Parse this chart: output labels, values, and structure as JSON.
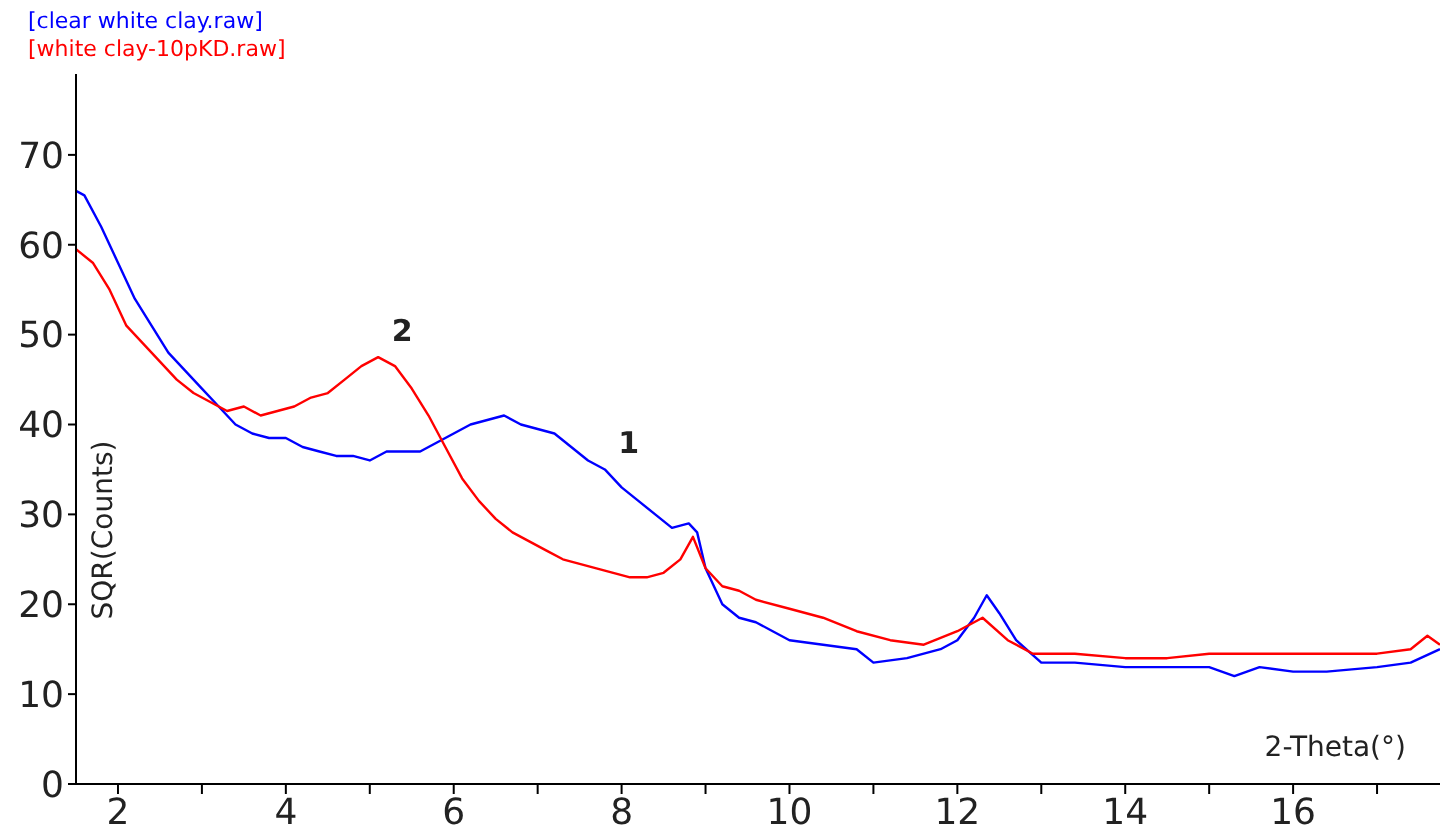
{
  "chart_data": {
    "type": "line",
    "xlabel": "2-Theta(°)",
    "ylabel": "SQR(Counts)",
    "xlim": [
      1.5,
      17.75
    ],
    "ylim": [
      0,
      79
    ],
    "xticks": [
      2,
      {
        "value": 3,
        "label": null
      },
      4,
      {
        "value": 5,
        "label": null
      },
      6,
      {
        "value": 7,
        "label": null
      },
      8,
      {
        "value": 9,
        "label": null
      },
      10,
      {
        "value": 11,
        "label": null
      },
      12,
      {
        "value": 13,
        "label": null
      },
      14,
      {
        "value": 15,
        "label": null
      },
      16,
      {
        "value": 17,
        "label": null
      }
    ],
    "yticks": [
      0,
      10,
      20,
      30,
      40,
      50,
      60,
      70
    ],
    "grid": false,
    "legend": "top left",
    "marker": "none",
    "line_style": "solid",
    "annotations": [
      {
        "text": "1",
        "x": 7.8,
        "y": 35
      },
      {
        "text": "2",
        "x": 5.1,
        "y": 47.5
      }
    ],
    "series": [
      {
        "name": "[clear white clay.raw]",
        "color": "#0000ff",
        "x": [
          1.5,
          1.6,
          1.8,
          2.0,
          2.2,
          2.4,
          2.6,
          2.8,
          3.0,
          3.2,
          3.4,
          3.6,
          3.8,
          4.0,
          4.2,
          4.4,
          4.6,
          4.8,
          5.0,
          5.2,
          5.4,
          5.6,
          5.8,
          6.0,
          6.2,
          6.4,
          6.6,
          6.8,
          7.0,
          7.2,
          7.4,
          7.6,
          7.8,
          8.0,
          8.2,
          8.4,
          8.6,
          8.8,
          8.9,
          9.0,
          9.2,
          9.4,
          9.6,
          9.8,
          10.0,
          10.4,
          10.8,
          11.0,
          11.4,
          11.8,
          12.0,
          12.2,
          12.35,
          12.5,
          12.7,
          13.0,
          13.4,
          14.0,
          14.5,
          15.0,
          15.3,
          15.6,
          16.0,
          16.4,
          17.0,
          17.4,
          17.75
        ],
        "values": [
          66,
          65.5,
          62,
          58,
          54,
          51,
          48,
          46,
          44,
          42,
          40,
          39,
          38.5,
          38.5,
          37.5,
          37,
          36.5,
          36.5,
          36,
          37,
          37,
          37,
          38,
          39,
          40,
          40.5,
          41,
          40,
          39.5,
          39,
          37.5,
          36,
          35,
          33,
          31.5,
          30,
          28.5,
          29,
          28,
          24,
          20,
          18.5,
          18,
          17,
          16,
          15.5,
          15,
          13.5,
          14,
          15,
          16,
          18.5,
          21,
          19,
          16,
          13.5,
          13.5,
          13,
          13,
          13,
          12,
          13,
          12.5,
          12.5,
          13,
          13.5,
          15
        ]
      },
      {
        "name": "[white clay-10pKD.raw]",
        "color": "#ff0000",
        "x": [
          1.5,
          1.7,
          1.9,
          2.1,
          2.3,
          2.5,
          2.7,
          2.9,
          3.1,
          3.3,
          3.5,
          3.7,
          3.9,
          4.1,
          4.3,
          4.5,
          4.7,
          4.9,
          5.1,
          5.3,
          5.5,
          5.7,
          5.9,
          6.1,
          6.3,
          6.5,
          6.7,
          6.9,
          7.1,
          7.3,
          7.5,
          7.7,
          7.9,
          8.1,
          8.3,
          8.5,
          8.7,
          8.85,
          9.0,
          9.2,
          9.4,
          9.6,
          10.0,
          10.4,
          10.8,
          11.2,
          11.6,
          12.0,
          12.3,
          12.6,
          12.9,
          13.4,
          14.0,
          14.5,
          15.0,
          15.5,
          16.0,
          16.5,
          17.0,
          17.4,
          17.6,
          17.75
        ],
        "values": [
          59.5,
          58,
          55,
          51,
          49,
          47,
          45,
          43.5,
          42.5,
          41.5,
          42,
          41,
          41.5,
          42,
          43,
          43.5,
          45,
          46.5,
          47.5,
          46.5,
          44,
          41,
          37.5,
          34,
          31.5,
          29.5,
          28,
          27,
          26,
          25,
          24.5,
          24,
          23.5,
          23,
          23,
          23.5,
          25,
          27.5,
          24,
          22,
          21.5,
          20.5,
          19.5,
          18.5,
          17,
          16,
          15.5,
          17,
          18.5,
          16,
          14.5,
          14.5,
          14,
          14,
          14.5,
          14.5,
          14.5,
          14.5,
          14.5,
          15,
          16.5,
          15.5
        ]
      }
    ]
  }
}
